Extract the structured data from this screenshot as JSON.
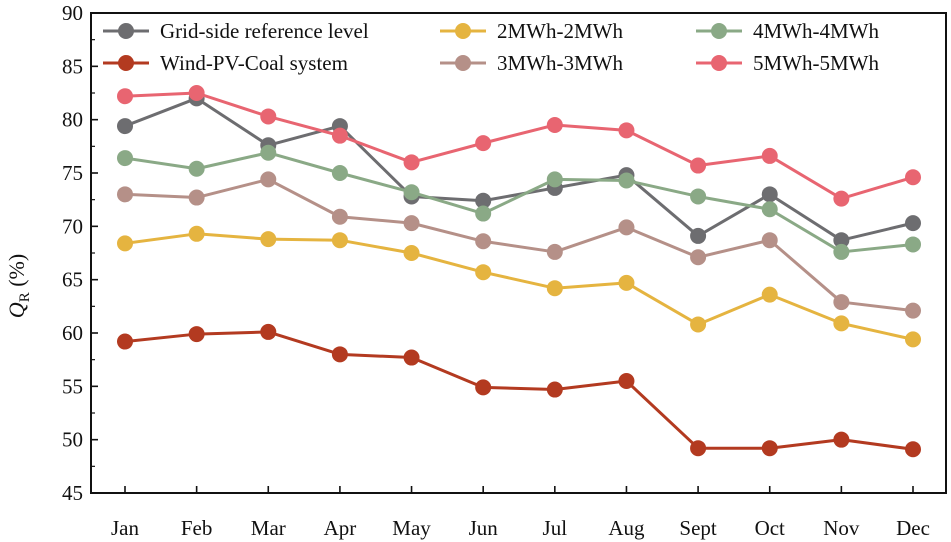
{
  "chart_data": {
    "type": "line",
    "title": "",
    "xlabel": "",
    "ylabel": "Q",
    "ylabel_subscript": "R",
    "ylabel_unit": "(%)",
    "ylim": [
      45,
      90
    ],
    "yticks": [
      45,
      50,
      55,
      60,
      65,
      70,
      75,
      80,
      85,
      90
    ],
    "legend_position": "top",
    "grid": false,
    "categories": [
      "Jan",
      "Feb",
      "Mar",
      "Apr",
      "May",
      "Jun",
      "Jul",
      "Aug",
      "Sept",
      "Oct",
      "Nov",
      "Dec"
    ],
    "series": [
      {
        "name": "Grid-side reference level",
        "color": "#6d6d70",
        "values": [
          79.4,
          82.0,
          77.6,
          79.4,
          72.8,
          72.4,
          73.6,
          74.8,
          69.1,
          73.0,
          68.7,
          70.3
        ]
      },
      {
        "name": "Wind-PV-Coal system",
        "color": "#b33a20",
        "values": [
          59.2,
          59.9,
          60.1,
          58.0,
          57.7,
          54.9,
          54.7,
          55.5,
          49.2,
          49.2,
          50.0,
          49.1
        ]
      },
      {
        "name": "2MWh-2MWh",
        "color": "#e5b440",
        "values": [
          68.4,
          69.3,
          68.8,
          68.7,
          67.5,
          65.7,
          64.2,
          64.7,
          60.8,
          63.6,
          60.9,
          59.4
        ]
      },
      {
        "name": "3MWh-3MWh",
        "color": "#b59088",
        "values": [
          73.0,
          72.7,
          74.4,
          70.9,
          70.3,
          68.6,
          67.6,
          69.9,
          67.1,
          68.7,
          62.9,
          62.1
        ]
      },
      {
        "name": "4MWh-4MWh",
        "color": "#8aa986",
        "values": [
          76.4,
          75.4,
          76.9,
          75.0,
          73.2,
          71.2,
          74.4,
          74.3,
          72.8,
          71.6,
          67.6,
          68.3
        ]
      },
      {
        "name": "5MWh-5MWh",
        "color": "#e86571",
        "values": [
          82.2,
          82.5,
          80.3,
          78.5,
          76.0,
          77.8,
          79.5,
          79.0,
          75.7,
          76.6,
          72.6,
          74.6
        ]
      }
    ],
    "legend_layout": [
      [
        0,
        2,
        4
      ],
      [
        1,
        3,
        5
      ]
    ]
  }
}
